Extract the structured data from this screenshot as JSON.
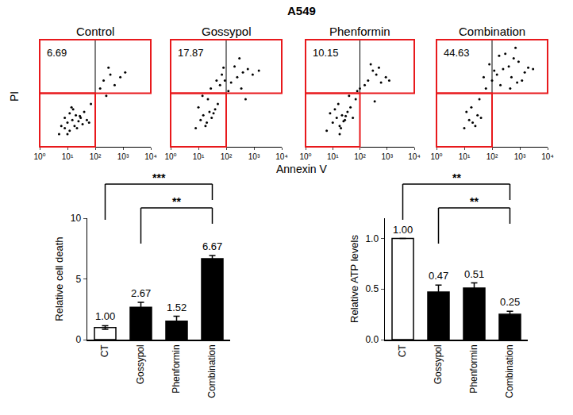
{
  "title": "A549",
  "x_label": "Annexin V",
  "y_label": "PI",
  "chart_data": [
    {
      "type": "scatter",
      "title": "Control",
      "color": "#000000",
      "log": true,
      "tick_labels": "x",
      "xlim": [
        1,
        10000
      ],
      "ylim": [
        1,
        10000
      ],
      "xticks": [
        {
          "value": 1,
          "label": "10⁰"
        },
        {
          "value": 10,
          "label": "10¹"
        },
        {
          "value": 100,
          "label": "10²"
        },
        {
          "value": 1000,
          "label": "10³"
        },
        {
          "value": 10000,
          "label": "10⁴"
        }
      ],
      "quadrant": {
        "x": 100,
        "y": 100
      },
      "gate_percent": 6.69,
      "x": [
        5,
        8,
        10,
        12,
        15,
        18,
        20,
        25,
        30,
        35,
        40,
        8,
        12,
        16,
        22,
        28,
        6,
        10,
        14,
        50,
        60,
        200,
        350,
        500,
        800,
        300,
        150,
        1200,
        250,
        70
      ],
      "y": [
        3,
        5,
        8,
        4,
        10,
        6,
        15,
        9,
        12,
        7,
        20,
        12,
        18,
        25,
        5,
        14,
        6,
        3,
        30,
        10,
        8,
        300,
        500,
        200,
        400,
        900,
        150,
        600,
        80,
        40
      ]
    },
    {
      "type": "scatter",
      "title": "Gossypol",
      "color": "#000000",
      "log": true,
      "tick_labels": "x",
      "xlim": [
        1,
        10000
      ],
      "ylim": [
        1,
        10000
      ],
      "xticks": [
        {
          "value": 1,
          "label": "10⁰"
        },
        {
          "value": 10,
          "label": "10¹"
        },
        {
          "value": 100,
          "label": "10²"
        },
        {
          "value": 1000,
          "label": "10³"
        },
        {
          "value": 10000,
          "label": "10⁴"
        }
      ],
      "quadrant": {
        "x": 100,
        "y": 100
      },
      "gate_percent": 17.87,
      "x": [
        8,
        12,
        15,
        20,
        25,
        30,
        40,
        10,
        18,
        35,
        50,
        22,
        14,
        28,
        60,
        90,
        150,
        250,
        400,
        600,
        900,
        200,
        350,
        120,
        80,
        45,
        70,
        1500,
        300,
        500
      ],
      "y": [
        5,
        10,
        15,
        8,
        20,
        12,
        25,
        30,
        6,
        18,
        40,
        60,
        80,
        150,
        200,
        300,
        250,
        400,
        600,
        800,
        500,
        1000,
        150,
        120,
        900,
        300,
        500,
        700,
        2000,
        60
      ]
    },
    {
      "type": "scatter",
      "title": "Phenformin",
      "color": "#000000",
      "log": true,
      "tick_labels": "x",
      "xlim": [
        1,
        10000
      ],
      "ylim": [
        1,
        10000
      ],
      "xticks": [
        {
          "value": 1,
          "label": "10⁰"
        },
        {
          "value": 10,
          "label": "10¹"
        },
        {
          "value": 100,
          "label": "10²"
        },
        {
          "value": 1000,
          "label": "10³"
        },
        {
          "value": 10000,
          "label": "10⁴"
        }
      ],
      "quadrant": {
        "x": 100,
        "y": 100
      },
      "gate_percent": 10.15,
      "x": [
        6,
        10,
        14,
        18,
        22,
        28,
        35,
        12,
        20,
        30,
        45,
        16,
        25,
        8,
        55,
        70,
        200,
        400,
        600,
        300,
        150,
        900,
        250,
        100,
        40,
        500,
        1200,
        80,
        350,
        18
      ],
      "y": [
        4,
        8,
        12,
        6,
        15,
        10,
        20,
        25,
        5,
        14,
        30,
        40,
        9,
        18,
        12,
        60,
        300,
        500,
        250,
        700,
        200,
        400,
        1200,
        150,
        80,
        900,
        300,
        120,
        50,
        3
      ]
    },
    {
      "type": "scatter",
      "title": "Combination",
      "color": "#000000",
      "log": true,
      "tick_labels": "x",
      "xlim": [
        1,
        10000
      ],
      "ylim": [
        1,
        10000
      ],
      "xticks": [
        {
          "value": 1,
          "label": "10⁰"
        },
        {
          "value": 10,
          "label": "10¹"
        },
        {
          "value": 100,
          "label": "10²"
        },
        {
          "value": 1000,
          "label": "10³"
        },
        {
          "value": 10000,
          "label": "10⁴"
        }
      ],
      "quadrant": {
        "x": 100,
        "y": 100
      },
      "gate_percent": 44.63,
      "x": [
        10,
        15,
        20,
        30,
        12,
        25,
        40,
        18,
        35,
        60,
        100,
        150,
        250,
        400,
        600,
        900,
        1500,
        2000,
        300,
        500,
        800,
        200,
        120,
        80,
        50,
        700,
        1200,
        3000,
        450,
        180
      ],
      "y": [
        5,
        10,
        8,
        15,
        20,
        6,
        12,
        30,
        60,
        150,
        300,
        500,
        800,
        1000,
        2000,
        1500,
        600,
        900,
        3000,
        400,
        250,
        200,
        700,
        1200,
        400,
        5000,
        300,
        800,
        150,
        2500
      ]
    },
    {
      "type": "bar",
      "y_label": "Relative cell death",
      "categories": [
        "CT",
        "Gossypol",
        "Phenformin",
        "Combination"
      ],
      "values": [
        1.0,
        2.67,
        1.52,
        6.67
      ],
      "value_labels": [
        "1.00",
        "2.67",
        "1.52",
        "6.67"
      ],
      "errors": [
        0.15,
        0.4,
        0.4,
        0.25
      ],
      "colors": [
        "#ffffff",
        "#000000",
        "#000000",
        "#000000"
      ],
      "ylim": [
        0,
        10
      ],
      "yticks": [
        0,
        5,
        10
      ],
      "data_labels": true,
      "significance": [
        {
          "from": "CT",
          "to": "Combination",
          "label": "***"
        },
        {
          "from": "Gossypol",
          "to": "Combination",
          "label": "**"
        }
      ]
    },
    {
      "type": "bar",
      "y_label": "Relative ATP levels",
      "categories": [
        "CT",
        "Gossypol",
        "Phenformin",
        "Combination"
      ],
      "values": [
        1.0,
        0.47,
        0.51,
        0.25
      ],
      "value_labels": [
        "1.00",
        "0.47",
        "0.51",
        "0.25"
      ],
      "errors": [
        0,
        0.07,
        0.05,
        0.03
      ],
      "colors": [
        "#ffffff",
        "#000000",
        "#000000",
        "#000000"
      ],
      "ylim": [
        0,
        1.2
      ],
      "yticks": [
        {
          "value": 0,
          "label": "0.0"
        },
        {
          "value": 0.5,
          "label": "0.5"
        },
        {
          "value": 1.0,
          "label": "1.0"
        }
      ],
      "data_labels": true,
      "significance": [
        {
          "from": "CT",
          "to": "Combination",
          "label": "**"
        },
        {
          "from": "Gossypol",
          "to": "Combination",
          "label": "**"
        }
      ]
    }
  ]
}
